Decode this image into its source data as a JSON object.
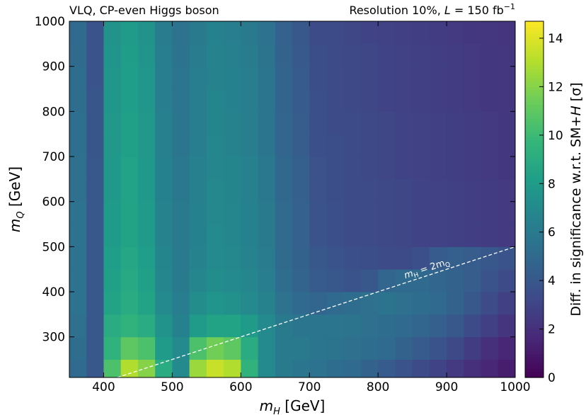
{
  "chart_data": {
    "type": "heatmap",
    "title": "VLQ, CP-even Higgs boson",
    "subtitle": [
      "Resolution 10%, ",
      "L",
      " = 150 fb",
      "−1"
    ],
    "xlabel": [
      "m",
      "H",
      " [GeV]"
    ],
    "ylabel": [
      "m",
      "Q",
      " [GeV]"
    ],
    "colorbar_label": [
      "Diff. in significance w.r.t. SM+",
      "H",
      " [σ]"
    ],
    "colormap": "viridis",
    "x_bins": [
      350,
      375,
      400,
      425,
      450,
      475,
      500,
      525,
      550,
      575,
      600,
      625,
      650,
      675,
      700,
      725,
      750,
      775,
      800,
      825,
      850,
      875,
      900,
      925,
      950,
      975,
      1000
    ],
    "y_bins": [
      210,
      250,
      300,
      350,
      400,
      450,
      500,
      550,
      600,
      650,
      700,
      750,
      800,
      850,
      900,
      950,
      1000
    ],
    "values": [
      [
        5.0,
        4.0,
        10.5,
        13.0,
        12.0,
        9.0,
        7.0,
        12.5,
        13.5,
        13.0,
        9.5,
        7.0,
        6.0,
        5.8,
        5.5,
        5.2,
        5.0,
        4.6,
        4.2,
        3.8,
        3.4,
        3.0,
        2.5,
        2.0,
        1.6,
        1.2
      ],
      [
        5.2,
        4.0,
        9.5,
        11.0,
        10.5,
        8.0,
        7.0,
        10.5,
        11.5,
        11.0,
        9.0,
        7.0,
        6.0,
        6.0,
        5.8,
        5.6,
        5.4,
        5.2,
        5.0,
        4.6,
        4.2,
        3.8,
        3.2,
        2.6,
        2.0,
        1.6
      ],
      [
        5.4,
        4.0,
        9.0,
        9.5,
        9.0,
        7.5,
        6.5,
        8.0,
        8.5,
        8.5,
        8.0,
        7.0,
        6.0,
        5.8,
        5.8,
        5.8,
        5.6,
        5.4,
        5.2,
        5.0,
        4.8,
        4.4,
        4.0,
        3.4,
        2.8,
        2.2
      ],
      [
        5.5,
        4.0,
        8.5,
        9.0,
        8.5,
        7.0,
        6.2,
        7.2,
        7.6,
        7.4,
        7.0,
        6.6,
        5.5,
        5.0,
        4.8,
        5.0,
        5.2,
        5.4,
        5.6,
        5.4,
        5.2,
        5.0,
        4.6,
        4.0,
        3.4,
        2.8
      ],
      [
        5.5,
        4.0,
        8.3,
        8.8,
        8.3,
        6.8,
        6.0,
        6.8,
        7.2,
        7.0,
        6.8,
        6.3,
        5.2,
        4.7,
        4.2,
        4.0,
        3.8,
        4.0,
        4.8,
        5.0,
        5.0,
        4.8,
        4.6,
        4.3,
        3.8,
        3.3
      ],
      [
        5.5,
        4.0,
        8.2,
        8.7,
        8.2,
        6.7,
        6.0,
        6.6,
        7.0,
        6.9,
        6.6,
        6.1,
        5.1,
        4.6,
        4.0,
        3.8,
        3.6,
        3.5,
        3.4,
        3.3,
        3.6,
        4.2,
        4.4,
        4.3,
        4.0,
        3.8
      ],
      [
        5.5,
        4.0,
        8.0,
        8.5,
        8.0,
        6.6,
        6.0,
        6.5,
        7.0,
        6.8,
        6.5,
        6.0,
        5.0,
        4.5,
        3.8,
        3.6,
        3.4,
        3.3,
        3.2,
        3.1,
        3.0,
        2.9,
        2.8,
        2.7,
        2.6,
        2.5
      ],
      [
        5.5,
        4.0,
        8.0,
        8.5,
        8.0,
        6.6,
        6.0,
        6.5,
        6.9,
        6.8,
        6.5,
        6.0,
        5.0,
        4.5,
        3.8,
        3.6,
        3.4,
        3.3,
        3.2,
        3.1,
        3.0,
        2.9,
        2.8,
        2.7,
        2.6,
        2.5
      ],
      [
        5.4,
        4.0,
        7.9,
        8.4,
        7.9,
        6.5,
        5.9,
        6.4,
        6.9,
        6.7,
        6.4,
        5.9,
        4.9,
        4.4,
        3.7,
        3.5,
        3.4,
        3.3,
        3.2,
        3.1,
        3.0,
        2.9,
        2.8,
        2.7,
        2.6,
        2.5
      ],
      [
        5.4,
        4.0,
        7.9,
        8.4,
        7.9,
        6.5,
        5.9,
        6.4,
        6.8,
        6.7,
        6.4,
        5.9,
        4.9,
        4.4,
        3.7,
        3.5,
        3.3,
        3.2,
        3.1,
        3.0,
        2.9,
        2.8,
        2.7,
        2.6,
        2.5,
        2.4
      ],
      [
        5.3,
        3.9,
        7.8,
        8.3,
        7.8,
        6.4,
        5.8,
        6.3,
        6.8,
        6.6,
        6.3,
        5.8,
        4.8,
        4.3,
        3.6,
        3.5,
        3.3,
        3.2,
        3.1,
        3.0,
        2.9,
        2.8,
        2.7,
        2.6,
        2.5,
        2.4
      ],
      [
        5.3,
        3.9,
        7.8,
        8.3,
        7.8,
        6.4,
        5.8,
        6.3,
        6.7,
        6.6,
        6.3,
        5.8,
        4.8,
        4.3,
        3.6,
        3.4,
        3.3,
        3.2,
        3.1,
        3.0,
        2.9,
        2.8,
        2.7,
        2.6,
        2.5,
        2.4
      ],
      [
        5.2,
        3.9,
        7.7,
        8.2,
        7.7,
        6.3,
        5.7,
        6.2,
        6.7,
        6.5,
        6.2,
        5.7,
        4.7,
        4.2,
        3.6,
        3.4,
        3.2,
        3.1,
        3.0,
        2.9,
        2.8,
        2.7,
        2.6,
        2.5,
        2.4,
        2.3
      ],
      [
        5.2,
        3.8,
        7.7,
        8.2,
        7.7,
        6.3,
        5.7,
        6.2,
        6.6,
        6.5,
        6.2,
        5.7,
        4.7,
        4.2,
        3.5,
        3.4,
        3.2,
        3.1,
        3.0,
        2.9,
        2.8,
        2.7,
        2.6,
        2.5,
        2.4,
        2.3
      ],
      [
        5.1,
        3.8,
        7.6,
        8.1,
        7.6,
        6.2,
        5.6,
        6.1,
        6.6,
        6.4,
        6.1,
        5.6,
        4.6,
        4.1,
        3.5,
        3.3,
        3.2,
        3.1,
        3.0,
        2.9,
        2.8,
        2.7,
        2.6,
        2.5,
        2.4,
        2.3
      ],
      [
        5.0,
        3.8,
        7.5,
        8.0,
        7.5,
        6.1,
        5.5,
        6.0,
        6.5,
        6.3,
        6.0,
        5.5,
        4.5,
        4.0,
        3.4,
        3.3,
        3.1,
        3.0,
        2.9,
        2.8,
        2.7,
        2.6,
        2.5,
        2.4,
        2.3,
        2.2
      ]
    ],
    "xlim": [
      350,
      1000
    ],
    "ylim": [
      210,
      1000
    ],
    "xticks": [
      400,
      500,
      600,
      700,
      800,
      900,
      1000
    ],
    "yticks": [
      300,
      400,
      500,
      600,
      700,
      800,
      900,
      1000
    ],
    "clim": [
      0,
      14.7
    ],
    "cticks": [
      0,
      2,
      4,
      6,
      8,
      10,
      12,
      14
    ],
    "reference_line": {
      "x": [
        420,
        1000
      ],
      "y": [
        210,
        500
      ],
      "label": [
        "m",
        "H",
        " = 2m",
        "Q"
      ]
    }
  }
}
